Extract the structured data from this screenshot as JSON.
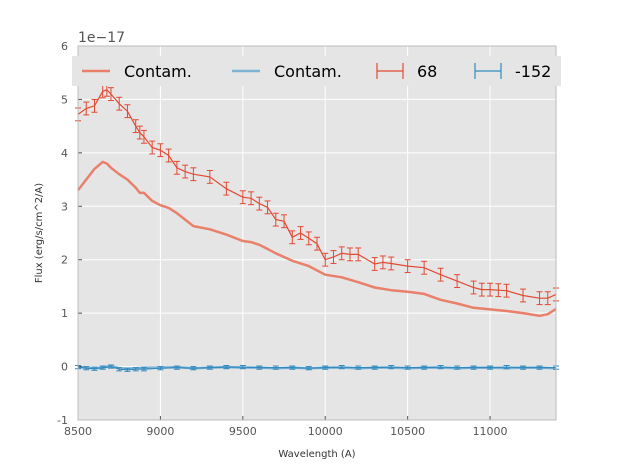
{
  "chart_data": {
    "type": "line",
    "xlabel": "Wavelength (A)",
    "ylabel": "Flux (erg/s/cm^2/A)",
    "y_offset_label": "1e−17",
    "xlim": [
      8500,
      11400
    ],
    "ylim": [
      -1,
      6
    ],
    "xticks": [
      8500,
      9000,
      9500,
      10000,
      10500,
      11000
    ],
    "yticks": [
      -1,
      0,
      1,
      2,
      3,
      4,
      5,
      6
    ],
    "grid": true,
    "legend_position": "top",
    "colors": {
      "red": "#e24a33",
      "blue": "#348abd",
      "background": "#e5e5e5"
    },
    "series": [
      {
        "name": "Contam.",
        "kind": "line",
        "color": "#e8806a",
        "x": [
          8500,
          8550,
          8600,
          8650,
          8675,
          8700,
          8750,
          8800,
          8850,
          8875,
          8900,
          8950,
          9000,
          9050,
          9100,
          9150,
          9200,
          9300,
          9400,
          9500,
          9550,
          9600,
          9650,
          9700,
          9750,
          9800,
          9900,
          10000,
          10100,
          10200,
          10300,
          10400,
          10500,
          10600,
          10700,
          10800,
          10900,
          11000,
          11100,
          11200,
          11300,
          11350,
          11400
        ],
        "values": [
          3.3,
          3.5,
          3.7,
          3.83,
          3.8,
          3.72,
          3.6,
          3.5,
          3.35,
          3.25,
          3.25,
          3.1,
          3.02,
          2.97,
          2.87,
          2.75,
          2.63,
          2.57,
          2.47,
          2.35,
          2.33,
          2.28,
          2.2,
          2.12,
          2.05,
          1.98,
          1.88,
          1.72,
          1.67,
          1.58,
          1.48,
          1.43,
          1.4,
          1.36,
          1.25,
          1.18,
          1.1,
          1.07,
          1.04,
          1.0,
          0.95,
          0.98,
          1.08
        ]
      },
      {
        "name": "Contam.",
        "kind": "line",
        "color": "#7eb3d6",
        "x": [
          8500,
          8550,
          8600,
          8650,
          8700,
          8750,
          8800,
          8850,
          8900,
          9000,
          9100,
          9200,
          9300,
          9400,
          9500,
          9600,
          9700,
          9800,
          9900,
          10000,
          10100,
          10200,
          10300,
          10400,
          10500,
          10600,
          10700,
          10800,
          10900,
          11000,
          11100,
          11200,
          11300,
          11400
        ],
        "values": [
          -0.01,
          -0.02,
          -0.03,
          -0.02,
          0.01,
          -0.03,
          -0.04,
          -0.03,
          -0.02,
          -0.02,
          -0.01,
          -0.03,
          -0.02,
          -0.01,
          -0.02,
          -0.02,
          -0.03,
          -0.02,
          -0.03,
          -0.02,
          -0.02,
          -0.03,
          -0.02,
          -0.02,
          -0.03,
          -0.02,
          -0.02,
          -0.03,
          -0.02,
          -0.02,
          -0.03,
          -0.02,
          -0.02,
          -0.03
        ]
      },
      {
        "name": "68",
        "kind": "errorbar",
        "color": "#e24a33",
        "error": 0.12,
        "x": [
          8500,
          8550,
          8600,
          8650,
          8675,
          8700,
          8750,
          8800,
          8850,
          8875,
          8900,
          8950,
          9000,
          9050,
          9100,
          9150,
          9200,
          9300,
          9400,
          9500,
          9550,
          9600,
          9650,
          9700,
          9750,
          9800,
          9850,
          9900,
          9950,
          10000,
          10050,
          10100,
          10150,
          10200,
          10300,
          10350,
          10400,
          10500,
          10600,
          10700,
          10800,
          10900,
          10950,
          11000,
          11050,
          11100,
          11200,
          11300,
          11350,
          11400
        ],
        "values": [
          4.72,
          4.83,
          4.88,
          5.15,
          5.18,
          5.1,
          4.92,
          4.78,
          4.5,
          4.38,
          4.3,
          4.1,
          4.05,
          3.95,
          3.72,
          3.65,
          3.6,
          3.55,
          3.33,
          3.17,
          3.15,
          3.05,
          2.98,
          2.75,
          2.72,
          2.42,
          2.5,
          2.4,
          2.3,
          2.0,
          2.05,
          2.12,
          2.1,
          2.1,
          1.92,
          1.95,
          1.93,
          1.88,
          1.85,
          1.72,
          1.6,
          1.48,
          1.44,
          1.44,
          1.43,
          1.42,
          1.33,
          1.28,
          1.28,
          1.35
        ]
      },
      {
        "name": "-152",
        "kind": "errorbar",
        "color": "#348abd",
        "error": 0.03,
        "x": [
          8500,
          8550,
          8600,
          8650,
          8700,
          8750,
          8800,
          8850,
          8900,
          9000,
          9100,
          9200,
          9300,
          9400,
          9500,
          9600,
          9700,
          9800,
          9900,
          10000,
          10100,
          10200,
          10300,
          10400,
          10500,
          10600,
          10700,
          10800,
          10900,
          11000,
          11100,
          11200,
          11300,
          11400
        ],
        "values": [
          -0.01,
          -0.03,
          -0.04,
          -0.02,
          0.0,
          -0.05,
          -0.06,
          -0.05,
          -0.05,
          -0.03,
          -0.02,
          -0.03,
          -0.02,
          -0.01,
          -0.01,
          -0.02,
          -0.02,
          -0.02,
          -0.03,
          -0.02,
          -0.01,
          -0.02,
          -0.02,
          -0.01,
          -0.02,
          -0.02,
          -0.01,
          -0.02,
          -0.02,
          -0.02,
          -0.01,
          -0.02,
          -0.02,
          -0.02
        ]
      }
    ]
  }
}
